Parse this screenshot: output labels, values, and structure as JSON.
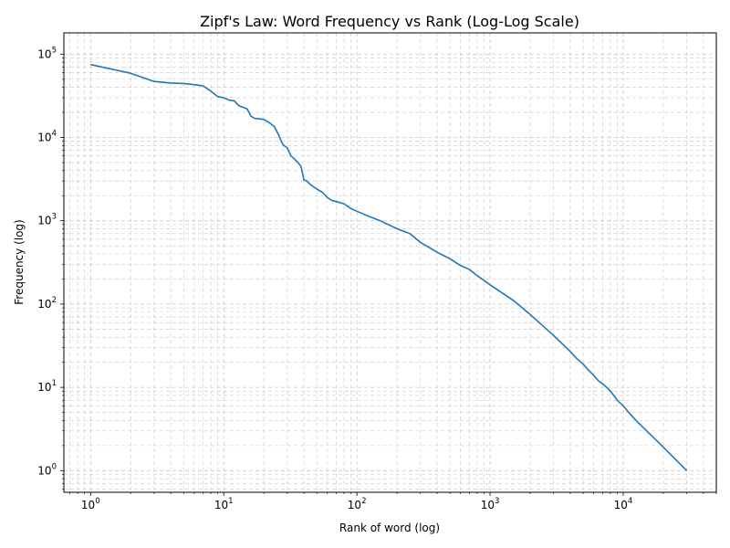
{
  "chart_data": {
    "type": "line",
    "title": "Zipf's Law: Word Frequency vs Rank (Log-Log Scale)",
    "xlabel": "Rank of word (log)",
    "ylabel": "Frequency (log)",
    "x_scale": "log",
    "y_scale": "log",
    "xlim": [
      0.63,
      50000
    ],
    "ylim": [
      0.55,
      180000
    ],
    "x_ticks": [
      {
        "value": 1,
        "base": "10",
        "exp": "0"
      },
      {
        "value": 10,
        "base": "10",
        "exp": "1"
      },
      {
        "value": 100,
        "base": "10",
        "exp": "2"
      },
      {
        "value": 1000,
        "base": "10",
        "exp": "3"
      },
      {
        "value": 10000,
        "base": "10",
        "exp": "4"
      }
    ],
    "y_ticks": [
      {
        "value": 1,
        "base": "10",
        "exp": "0"
      },
      {
        "value": 10,
        "base": "10",
        "exp": "1"
      },
      {
        "value": 100,
        "base": "10",
        "exp": "2"
      },
      {
        "value": 1000,
        "base": "10",
        "exp": "3"
      },
      {
        "value": 10000,
        "base": "10",
        "exp": "4"
      },
      {
        "value": 100000,
        "base": "10",
        "exp": "5"
      }
    ],
    "grid": true,
    "grid_style": "dashed",
    "line_color": "#1f77b4",
    "series": [
      {
        "x": [
          1,
          2,
          3,
          4,
          5,
          6,
          7,
          8,
          9,
          10,
          11,
          12,
          13,
          14,
          15,
          16,
          17,
          18,
          20,
          22,
          24,
          26,
          27,
          28,
          30,
          32,
          34,
          36,
          38,
          40,
          42,
          45,
          50,
          55,
          60,
          65,
          70,
          80,
          90,
          100,
          120,
          150,
          200,
          250,
          300,
          400,
          500,
          600,
          700,
          800,
          1000,
          1200,
          1500,
          2000,
          3000,
          4000,
          4500,
          5000,
          5500,
          6000,
          6500,
          7000,
          7500,
          8000,
          8500,
          9000,
          10000,
          11000,
          12500,
          15000,
          19500,
          30000
        ],
        "y": [
          75000,
          59000,
          47000,
          45000,
          44500,
          43000,
          41500,
          36000,
          31000,
          30000,
          28000,
          27500,
          24000,
          23000,
          22000,
          18000,
          17000,
          16800,
          16500,
          15000,
          13500,
          10500,
          9000,
          8100,
          7500,
          6000,
          5500,
          5000,
          4500,
          3100,
          3000,
          2700,
          2400,
          2200,
          1900,
          1750,
          1700,
          1600,
          1400,
          1300,
          1150,
          1000,
          800,
          700,
          550,
          420,
          350,
          290,
          260,
          220,
          170,
          140,
          110,
          75,
          42,
          27,
          22,
          19,
          16,
          14,
          12,
          11,
          10,
          9,
          8,
          7,
          6,
          5,
          4,
          3,
          2,
          1
        ]
      }
    ]
  }
}
